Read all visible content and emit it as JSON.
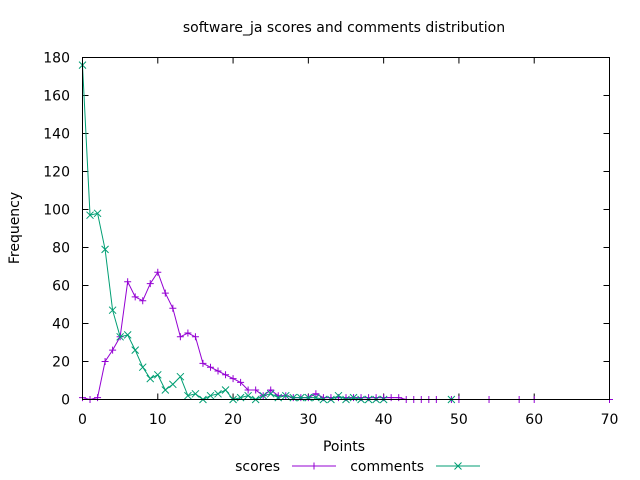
{
  "chart_data": {
    "type": "line",
    "title": "software_ja scores and comments distribution",
    "xlabel": "Points",
    "ylabel": "Frequency",
    "xlim": [
      0,
      70
    ],
    "ylim": [
      0,
      180
    ],
    "xticks": [
      0,
      10,
      20,
      30,
      40,
      50,
      60,
      70
    ],
    "yticks": [
      0,
      20,
      40,
      60,
      80,
      100,
      120,
      140,
      160,
      180
    ],
    "grid": false,
    "legend": "bottom",
    "series": [
      {
        "name": "scores",
        "color": "#9400d3",
        "marker": "plus",
        "points": [
          [
            0,
            1
          ],
          [
            1,
            0
          ],
          [
            2,
            1
          ],
          [
            3,
            20
          ],
          [
            4,
            26
          ],
          [
            5,
            33
          ],
          [
            6,
            62
          ],
          [
            7,
            54
          ],
          [
            8,
            52
          ],
          [
            9,
            61
          ],
          [
            10,
            67
          ],
          [
            11,
            56
          ],
          [
            12,
            48
          ],
          [
            13,
            33
          ],
          [
            14,
            35
          ],
          [
            15,
            33
          ],
          [
            16,
            19
          ],
          [
            17,
            17
          ],
          [
            18,
            15
          ],
          [
            19,
            13
          ],
          [
            20,
            11
          ],
          [
            21,
            9
          ],
          [
            22,
            5
          ],
          [
            23,
            5
          ],
          [
            24,
            2
          ],
          [
            25,
            5
          ],
          [
            26,
            2
          ],
          [
            27,
            2
          ],
          [
            28,
            1
          ],
          [
            29,
            1
          ],
          [
            30,
            1
          ],
          [
            31,
            3
          ],
          [
            32,
            1
          ],
          [
            33,
            1
          ],
          [
            34,
            1
          ],
          [
            35,
            1
          ],
          [
            36,
            1
          ],
          [
            37,
            1
          ],
          [
            38,
            1
          ],
          [
            39,
            1
          ],
          [
            40,
            1
          ],
          [
            41,
            1
          ],
          [
            42,
            1
          ],
          [
            43,
            0
          ],
          [
            44,
            0
          ],
          [
            45,
            0
          ],
          [
            46,
            0
          ],
          [
            47,
            0
          ],
          [
            49,
            0
          ],
          [
            50,
            0
          ],
          [
            54,
            0
          ],
          [
            58,
            0
          ],
          [
            60,
            0
          ],
          [
            70,
            0
          ]
        ]
      },
      {
        "name": "comments",
        "color": "#009e73",
        "marker": "cross",
        "points": [
          [
            0,
            176
          ],
          [
            1,
            97
          ],
          [
            2,
            98
          ],
          [
            3,
            79
          ],
          [
            4,
            47
          ],
          [
            5,
            33
          ],
          [
            6,
            34
          ],
          [
            7,
            26
          ],
          [
            8,
            17
          ],
          [
            9,
            11
          ],
          [
            10,
            13
          ],
          [
            11,
            5
          ],
          [
            12,
            8
          ],
          [
            13,
            12
          ],
          [
            14,
            2
          ],
          [
            15,
            3
          ],
          [
            16,
            0
          ],
          [
            17,
            2
          ],
          [
            18,
            3
          ],
          [
            19,
            5
          ],
          [
            20,
            0
          ],
          [
            21,
            1
          ],
          [
            22,
            2
          ],
          [
            23,
            0
          ],
          [
            24,
            2
          ],
          [
            25,
            3
          ],
          [
            26,
            1
          ],
          [
            27,
            2
          ],
          [
            28,
            1
          ],
          [
            29,
            1
          ],
          [
            30,
            1
          ],
          [
            31,
            1
          ],
          [
            32,
            0
          ],
          [
            33,
            0
          ],
          [
            34,
            2
          ],
          [
            35,
            0
          ],
          [
            36,
            1
          ],
          [
            37,
            0
          ],
          [
            38,
            0
          ],
          [
            39,
            0
          ],
          [
            40,
            0
          ],
          [
            49,
            0
          ]
        ]
      }
    ]
  }
}
